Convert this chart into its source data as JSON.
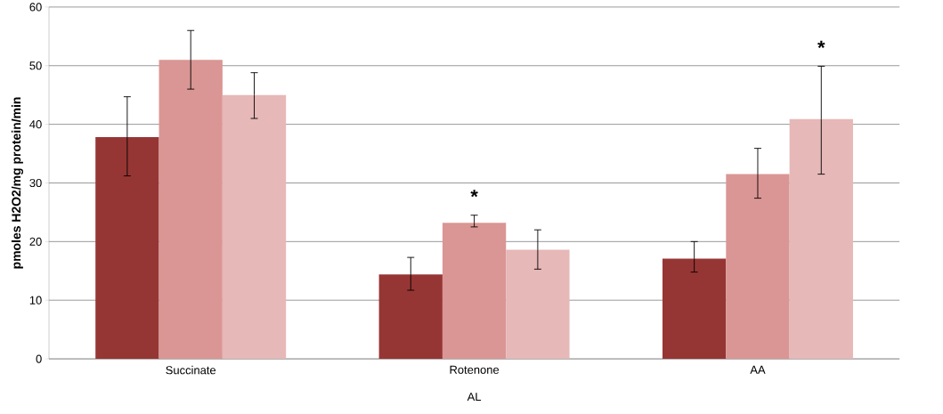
{
  "chart_data": {
    "type": "bar",
    "ylabel": "pmoles H2O2/mg protein/min",
    "xlabel": "AL",
    "categories": [
      "Succinate",
      "Rotenone",
      "AA"
    ],
    "series": [
      {
        "color": "#963634",
        "values": [
          37.8,
          14.4,
          17.1
        ],
        "errors": [
          [
            31.2,
            44.7
          ],
          [
            11.7,
            17.3
          ],
          [
            14.8,
            20.0
          ]
        ]
      },
      {
        "color": "#da9694",
        "values": [
          51.0,
          23.2,
          31.5
        ],
        "errors": [
          [
            46.0,
            56.0
          ],
          [
            22.5,
            24.5
          ],
          [
            27.4,
            35.9
          ]
        ]
      },
      {
        "color": "#e6b8b7",
        "values": [
          45.0,
          18.6,
          40.9
        ],
        "errors": [
          [
            41.0,
            48.8
          ],
          [
            15.3,
            22.0
          ],
          [
            31.5,
            49.9
          ]
        ]
      }
    ],
    "ylim": [
      0,
      60
    ],
    "yticks": [
      0,
      10,
      20,
      30,
      40,
      50,
      60
    ],
    "grid": "y",
    "annotations": [
      "*",
      "*"
    ]
  }
}
